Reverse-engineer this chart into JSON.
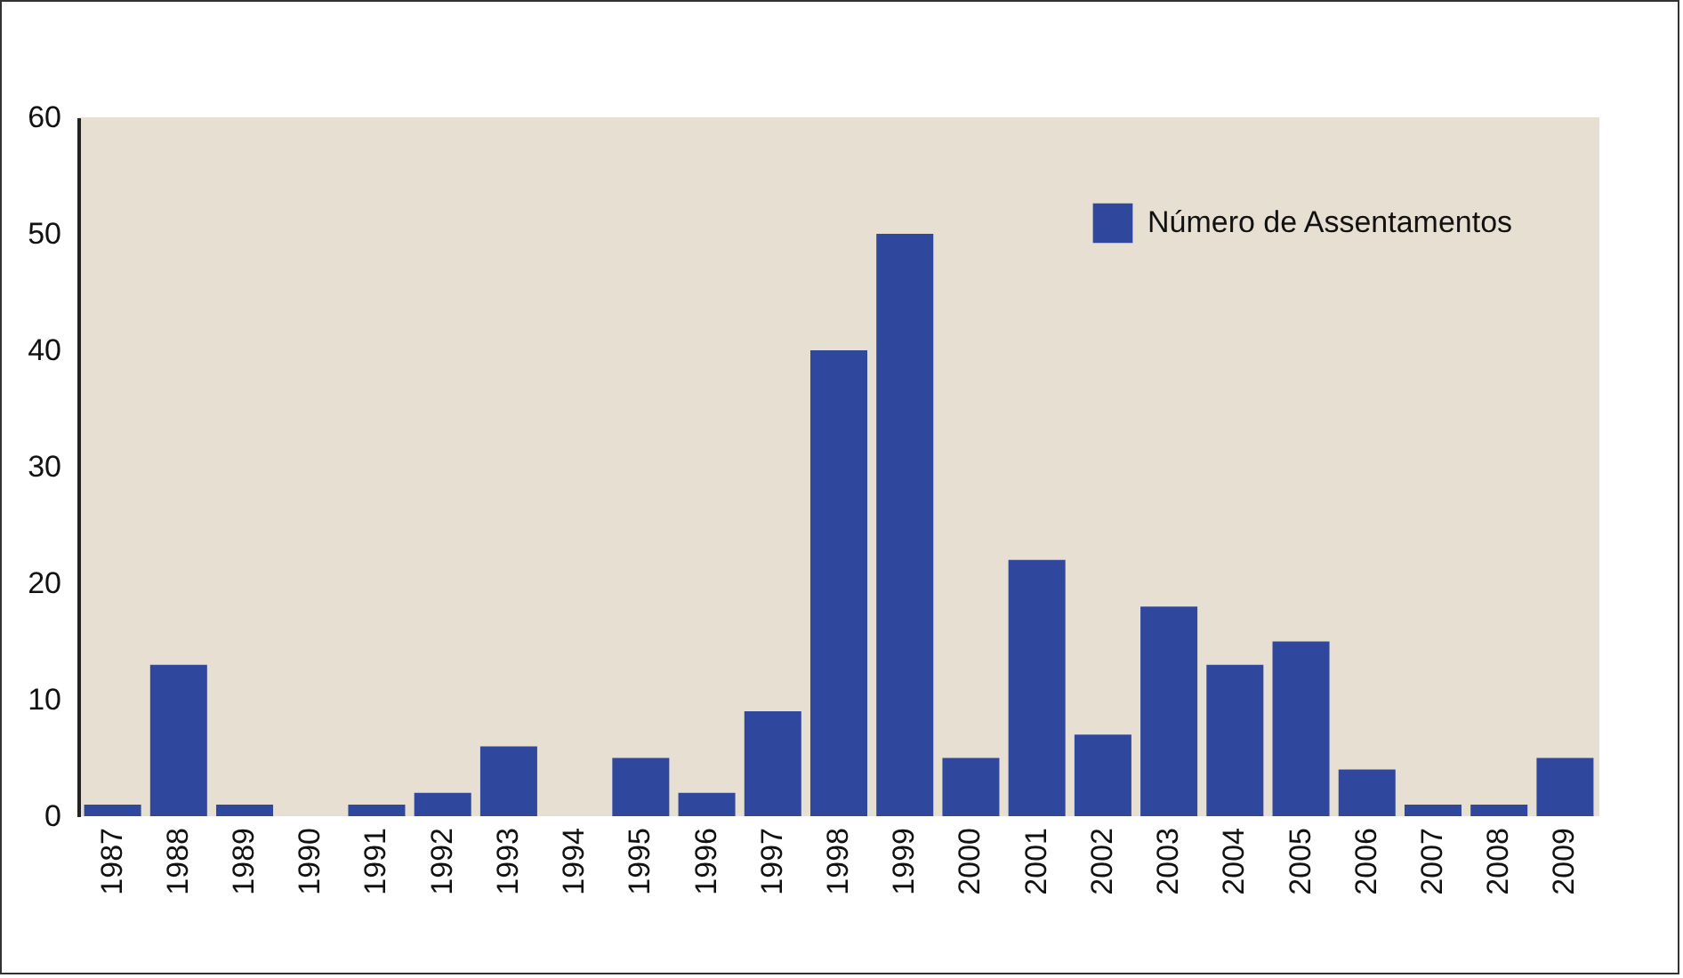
{
  "chart_data": {
    "type": "bar",
    "categories": [
      "1987",
      "1988",
      "1989",
      "1990",
      "1991",
      "1992",
      "1993",
      "1994",
      "1995",
      "1996",
      "1997",
      "1998",
      "1999",
      "2000",
      "2001",
      "2002",
      "2003",
      "2004",
      "2005",
      "2006",
      "2007",
      "2008",
      "2009"
    ],
    "series": [
      {
        "name": "Número de Assentamentos",
        "color": "#2f479c",
        "values": [
          1,
          13,
          1,
          0,
          1,
          2,
          6,
          0,
          5,
          2,
          9,
          40,
          50,
          5,
          22,
          7,
          18,
          13,
          15,
          4,
          1,
          1,
          5
        ]
      }
    ],
    "ylim": [
      0,
      60
    ],
    "yticks": [
      0,
      10,
      20,
      30,
      40,
      50,
      60
    ],
    "grid": false,
    "legend": "top right"
  }
}
